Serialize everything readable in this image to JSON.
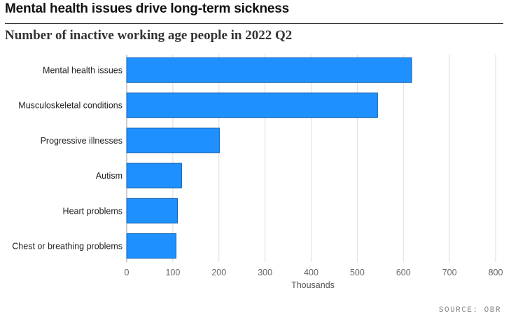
{
  "title": "Mental health issues drive long-term sickness",
  "subtitle": "Number of inactive working age people in 2022 Q2",
  "source": "SOURCE: OBR",
  "colors": {
    "bar": "#1e90ff",
    "bar_stroke": "#0a5fb0",
    "grid": "#dddddd",
    "label": "#222222",
    "tick": "#666666"
  },
  "chart_data": {
    "type": "bar",
    "orientation": "horizontal",
    "title": "Number of inactive working age people in 2022 Q2",
    "xlabel": "Thousands",
    "ylabel": "",
    "xlim": [
      0,
      800
    ],
    "xticks": [
      0,
      100,
      200,
      300,
      400,
      500,
      600,
      700,
      800
    ],
    "grid": true,
    "categories": [
      "Mental health issues",
      "Musculoskeletal conditions",
      "Progressive illnesses",
      "Autism",
      "Heart problems",
      "Chest or breathing problems"
    ],
    "values": [
      618,
      544,
      201,
      119,
      110,
      107
    ]
  }
}
